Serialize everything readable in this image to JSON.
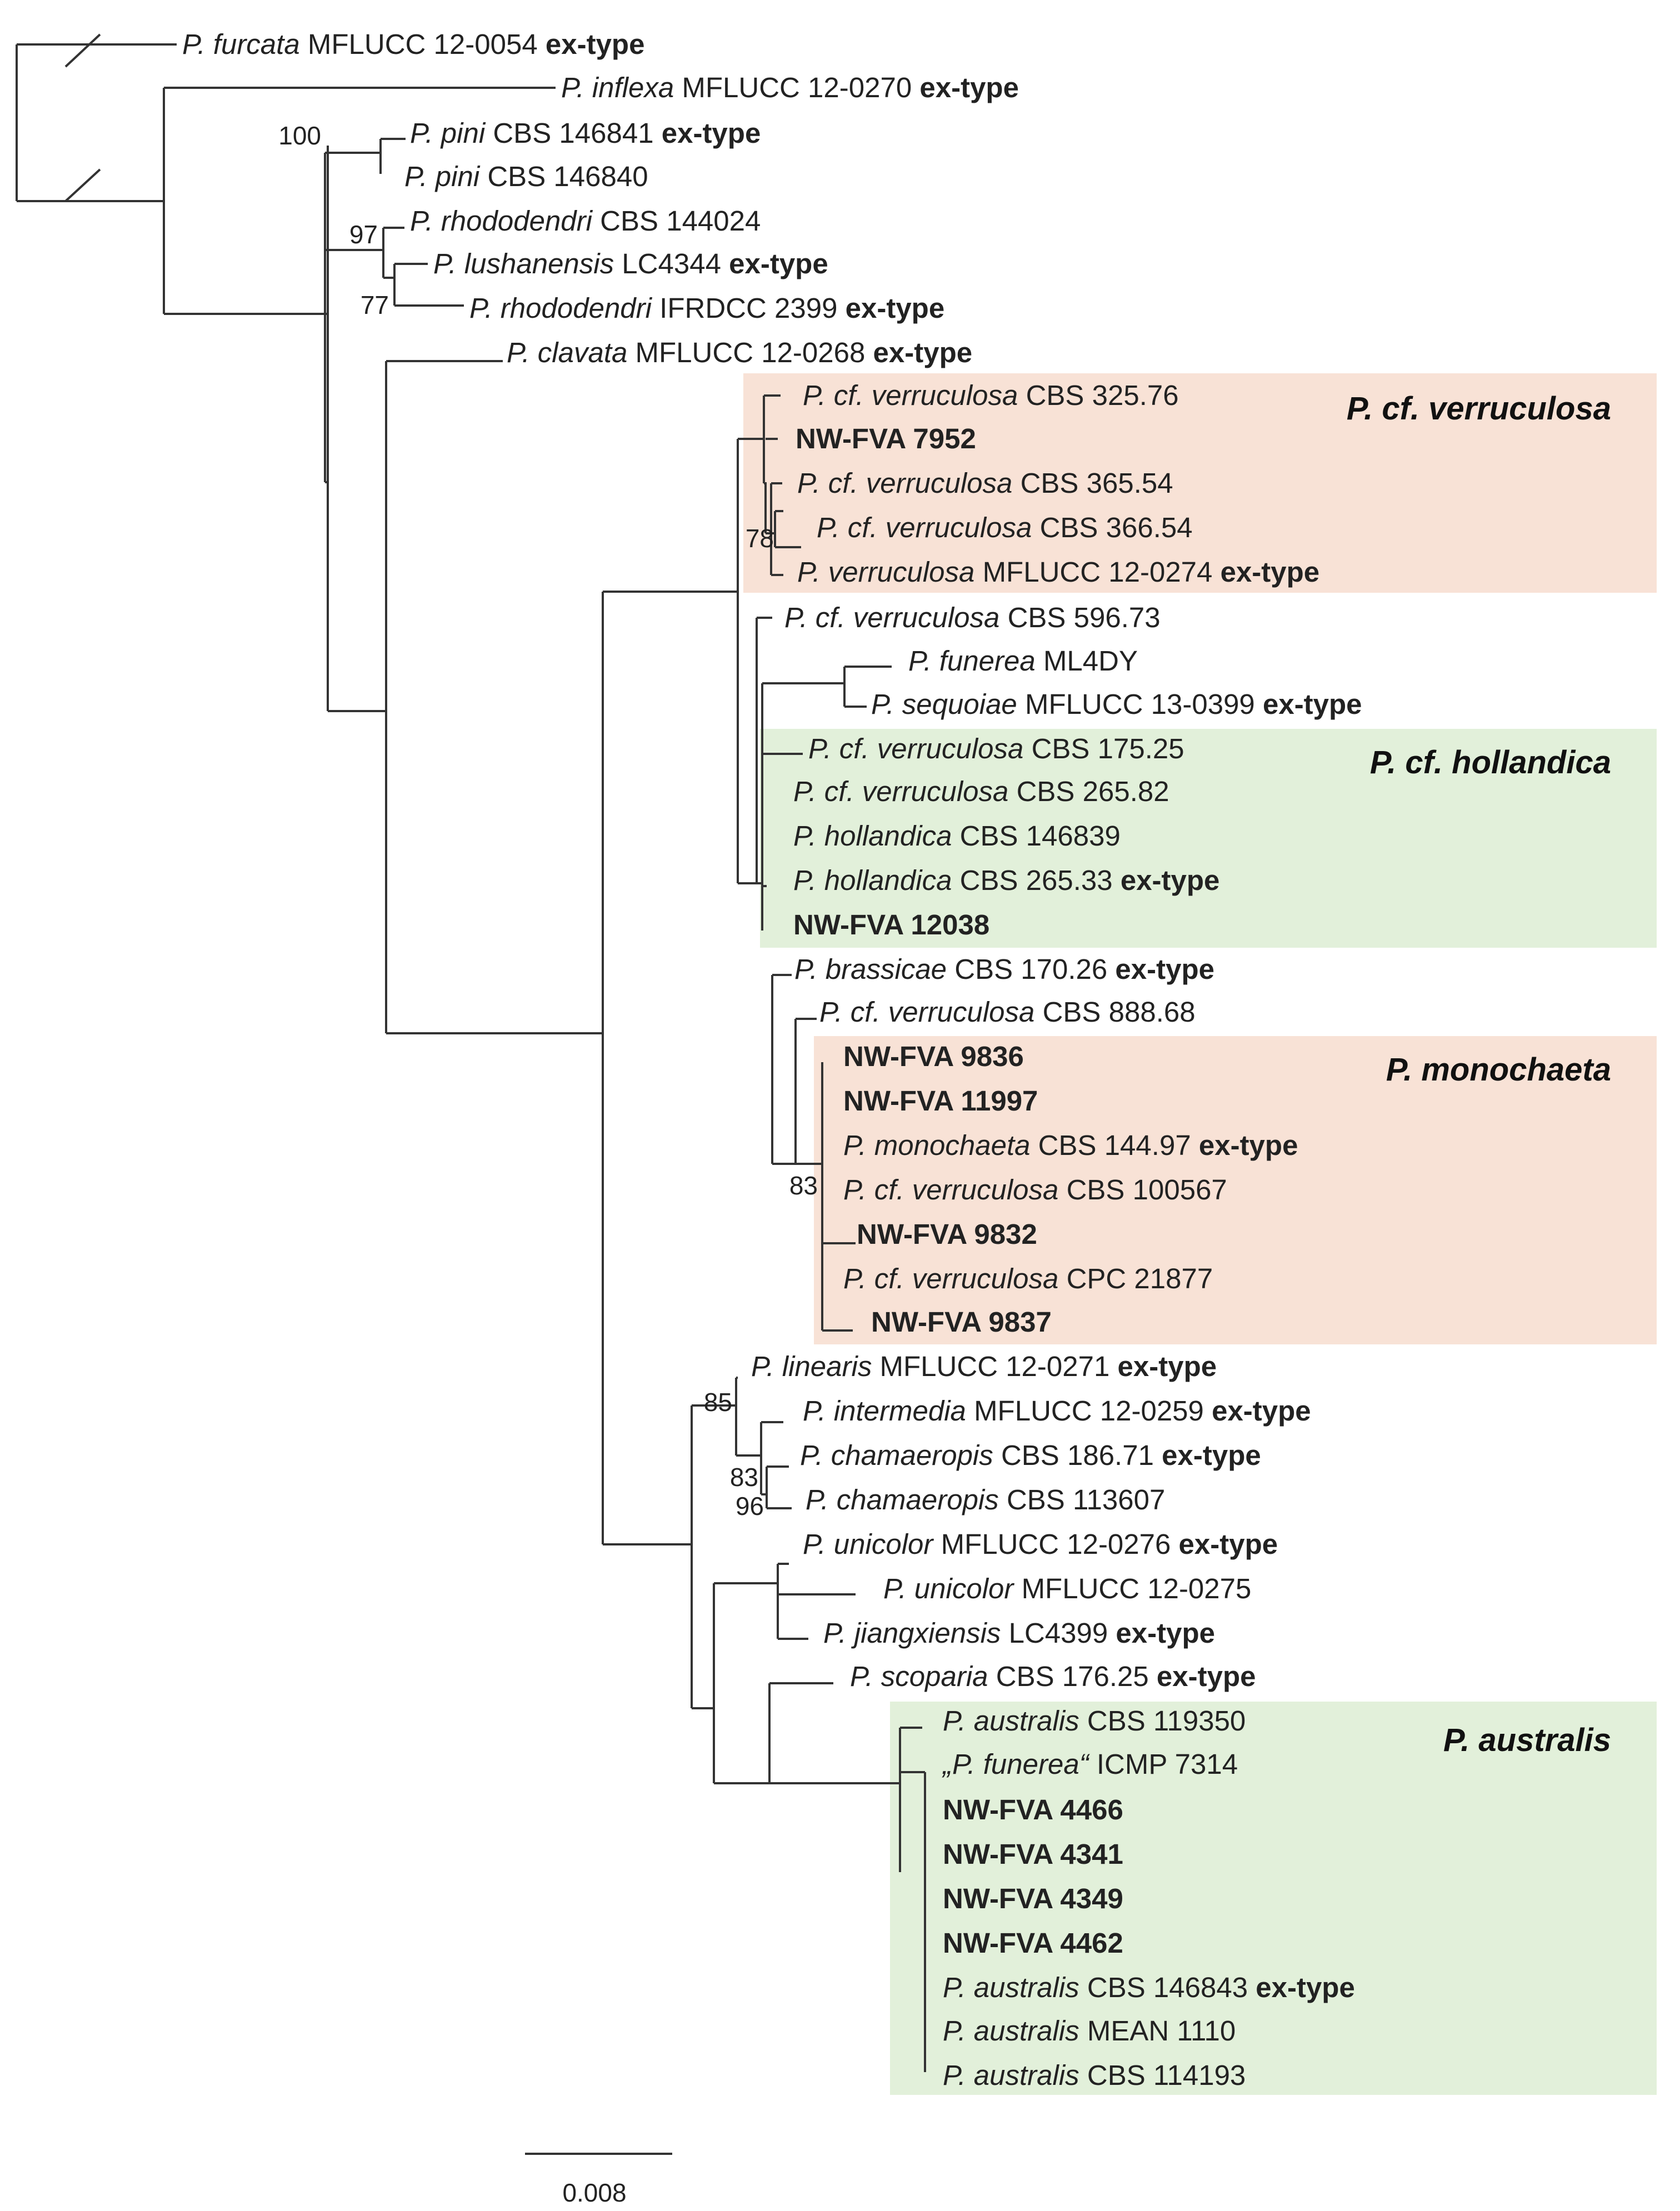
{
  "colors": {
    "orange_box": "#f8e2d6",
    "green_box": "#e2f0da",
    "branch": "#333333"
  },
  "clades": [
    {
      "label": "P. cf. verruculosa",
      "color": "#f8e2d6"
    },
    {
      "label": "P. cf. hollandica",
      "color": "#e2f0da"
    },
    {
      "label": "P. monochaeta",
      "color": "#f8e2d6"
    },
    {
      "label": "P. australis",
      "color": "#e2f0da"
    }
  ],
  "tips": [
    {
      "species": "P. furcata",
      "strain": "MFLUCC 12-0054",
      "note": "ex-type"
    },
    {
      "species": "P. inflexa",
      "strain": "MFLUCC 12-0270",
      "note": "ex-type"
    },
    {
      "species": "P. pini",
      "strain": "CBS 146841",
      "note": "ex-type"
    },
    {
      "species": "P. pini",
      "strain": "CBS 146840",
      "note": ""
    },
    {
      "species": "P. rhododendri",
      "strain": "CBS 144024",
      "note": ""
    },
    {
      "species": "P. lushanensis",
      "strain": "LC4344",
      "note": "ex-type"
    },
    {
      "species": "P. rhododendri",
      "strain": "IFRDCC 2399",
      "note": "ex-type"
    },
    {
      "species": "P. clavata",
      "strain": "MFLUCC 12-0268",
      "note": "ex-type"
    },
    {
      "species": "P. cf. verruculosa",
      "strain": "CBS 325.76",
      "note": ""
    },
    {
      "species": "",
      "strain": "NW-FVA 7952",
      "note": "",
      "bold": true
    },
    {
      "species": "P. cf. verruculosa",
      "strain": "CBS 365.54",
      "note": ""
    },
    {
      "species": "P. cf. verruculosa",
      "strain": "CBS 366.54",
      "note": ""
    },
    {
      "species": "P. verruculosa",
      "strain": "MFLUCC 12-0274",
      "note": "ex-type"
    },
    {
      "species": "P. cf. verruculosa",
      "strain": "CBS 596.73",
      "note": ""
    },
    {
      "species": "P. funerea",
      "strain": "ML4DY",
      "note": ""
    },
    {
      "species": "P. sequoiae",
      "strain": "MFLUCC 13-0399",
      "note": "ex-type"
    },
    {
      "species": "P. cf. verruculosa",
      "strain": "CBS 175.25",
      "note": ""
    },
    {
      "species": "P. cf. verruculosa",
      "strain": "CBS 265.82",
      "note": ""
    },
    {
      "species": "P. hollandica",
      "strain": "CBS 146839",
      "note": ""
    },
    {
      "species": "P. hollandica",
      "strain": "CBS 265.33",
      "note": "ex-type"
    },
    {
      "species": "",
      "strain": "NW-FVA 12038",
      "note": "",
      "bold": true
    },
    {
      "species": "P. brassicae",
      "strain": "CBS 170.26",
      "note": "ex-type"
    },
    {
      "species": "P. cf. verruculosa",
      "strain": "CBS 888.68",
      "note": ""
    },
    {
      "species": "",
      "strain": "NW-FVA 9836",
      "note": "",
      "bold": true
    },
    {
      "species": "",
      "strain": "NW-FVA 11997",
      "note": "",
      "bold": true
    },
    {
      "species": "P. monochaeta",
      "strain": "CBS 144.97",
      "note": "ex-type"
    },
    {
      "species": "P. cf. verruculosa",
      "strain": "CBS 100567",
      "note": ""
    },
    {
      "species": "",
      "strain": "NW-FVA 9832",
      "note": "",
      "bold": true
    },
    {
      "species": "P. cf. verruculosa",
      "strain": "CPC 21877",
      "note": ""
    },
    {
      "species": "",
      "strain": "NW-FVA 9837",
      "note": "",
      "bold": true
    },
    {
      "species": "P. linearis",
      "strain": "MFLUCC 12-0271",
      "note": "ex-type"
    },
    {
      "species": "P. intermedia",
      "strain": "MFLUCC 12-0259",
      "note": "ex-type"
    },
    {
      "species": "P. chamaeropis",
      "strain": "CBS 186.71",
      "note": "ex-type"
    },
    {
      "species": "P. chamaeropis",
      "strain": "CBS 113607",
      "note": ""
    },
    {
      "species": "P. unicolor",
      "strain": "MFLUCC 12-0276",
      "note": "ex-type"
    },
    {
      "species": "P. unicolor",
      "strain": "MFLUCC 12-0275",
      "note": ""
    },
    {
      "species": "P. jiangxiensis",
      "strain": "LC4399",
      "note": "ex-type"
    },
    {
      "species": "P. scoparia",
      "strain": "CBS 176.25",
      "note": "ex-type"
    },
    {
      "species": "P. australis",
      "strain": "CBS 119350",
      "note": ""
    },
    {
      "species": "„P. funerea“",
      "strain": "ICMP 7314",
      "note": ""
    },
    {
      "species": "",
      "strain": "NW-FVA 4466",
      "note": "",
      "bold": true
    },
    {
      "species": "",
      "strain": "NW-FVA 4341",
      "note": "",
      "bold": true
    },
    {
      "species": "",
      "strain": "NW-FVA 4349",
      "note": "",
      "bold": true
    },
    {
      "species": "",
      "strain": "NW-FVA 4462",
      "note": "",
      "bold": true
    },
    {
      "species": "P. australis",
      "strain": "CBS 146843",
      "note": "ex-type"
    },
    {
      "species": "P. australis",
      "strain": "MEAN 1110",
      "note": ""
    },
    {
      "species": "P. australis",
      "strain": "CBS 114193",
      "note": ""
    }
  ],
  "support_values": [
    "100",
    "97",
    "77",
    "78",
    "83",
    "85",
    "83",
    "96"
  ],
  "scale_bar": {
    "label": "0.008"
  }
}
